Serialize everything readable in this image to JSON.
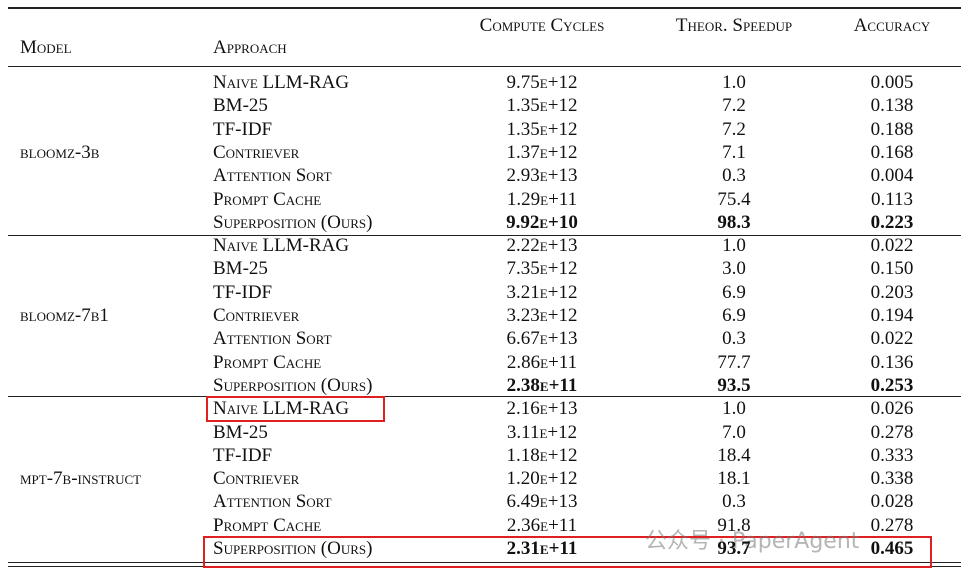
{
  "header": {
    "columns": [
      "Model",
      "Approach",
      "Compute Cycles",
      "Theor. Speedup",
      "Accuracy"
    ]
  },
  "groups": [
    {
      "model": "bloomz-3b",
      "rows": [
        [
          "Naive LLM-RAG",
          "9.75e+12",
          "1.0",
          "0.005"
        ],
        [
          "BM-25",
          "1.35e+12",
          "7.2",
          "0.138"
        ],
        [
          "TF-IDF",
          "1.35e+12",
          "7.2",
          "0.188"
        ],
        [
          "Contriever",
          "1.37e+12",
          "7.1",
          "0.168"
        ],
        [
          "Attention Sort",
          "2.93e+13",
          "0.3",
          "0.004"
        ],
        [
          "Prompt Cache",
          "1.29e+11",
          "75.4",
          "0.113"
        ],
        [
          "Superposition (Ours)",
          "9.92e+10",
          "98.3",
          "0.223"
        ]
      ]
    },
    {
      "model": "bloomz-7b1",
      "rows": [
        [
          "Naive LLM-RAG",
          "2.22e+13",
          "1.0",
          "0.022"
        ],
        [
          "BM-25",
          "7.35e+12",
          "3.0",
          "0.150"
        ],
        [
          "TF-IDF",
          "3.21e+12",
          "6.9",
          "0.203"
        ],
        [
          "Contriever",
          "3.23e+12",
          "6.9",
          "0.194"
        ],
        [
          "Attention Sort",
          "6.67e+13",
          "0.3",
          "0.022"
        ],
        [
          "Prompt Cache",
          "2.86e+11",
          "77.7",
          "0.136"
        ],
        [
          "Superposition (Ours)",
          "2.38e+11",
          "93.5",
          "0.253"
        ]
      ]
    },
    {
      "model": "mpt-7b-instruct",
      "rows": [
        [
          "Naive LLM-RAG",
          "2.16e+13",
          "1.0",
          "0.026"
        ],
        [
          "BM-25",
          "3.11e+12",
          "7.0",
          "0.278"
        ],
        [
          "TF-IDF",
          "1.18e+12",
          "18.4",
          "0.333"
        ],
        [
          "Contriever",
          "1.20e+12",
          "18.1",
          "0.338"
        ],
        [
          "Attention Sort",
          "6.49e+13",
          "0.3",
          "0.028"
        ],
        [
          "Prompt Cache",
          "2.36e+11",
          "91.8",
          "0.278"
        ],
        [
          "Superposition (Ours)",
          "2.31e+11",
          "93.7",
          "0.465"
        ]
      ]
    }
  ],
  "watermark": "公众号 · PaperAgent"
}
